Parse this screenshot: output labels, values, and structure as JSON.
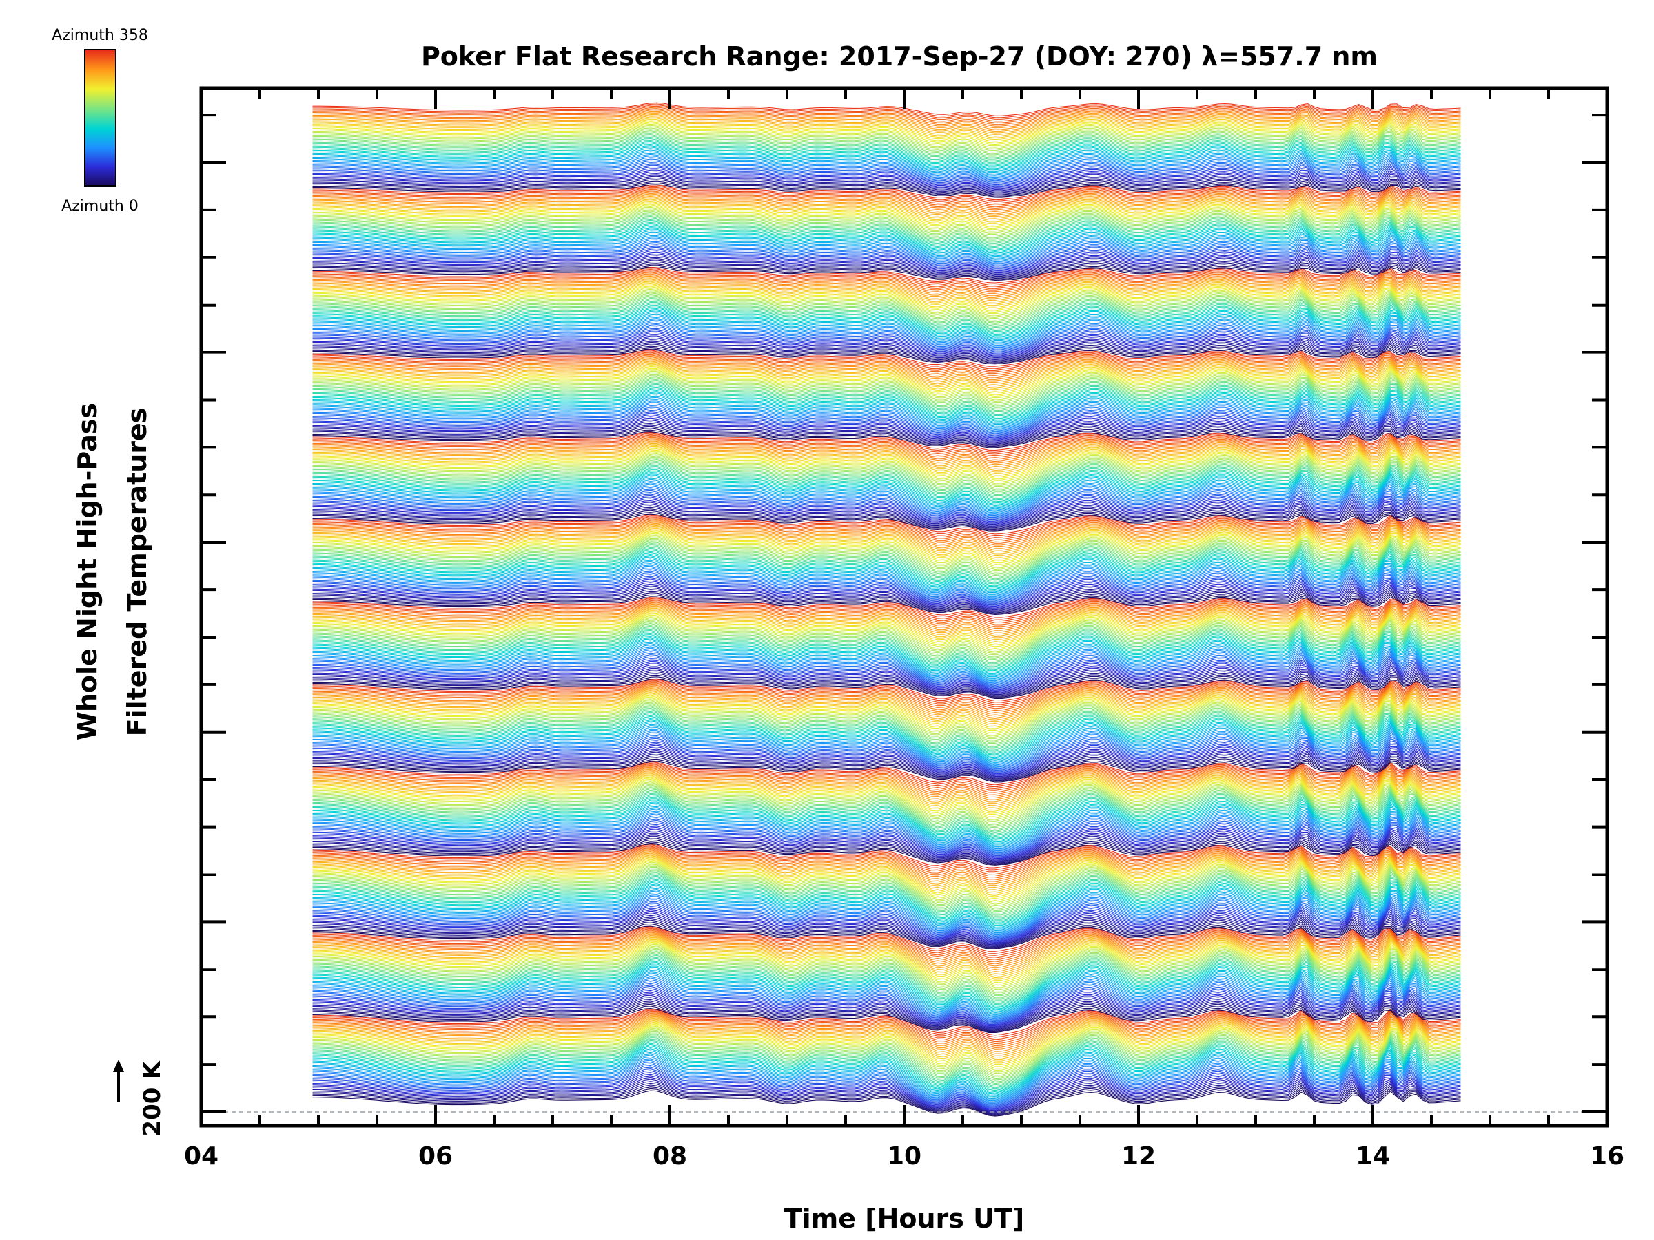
{
  "chart_data": {
    "type": "line",
    "title": "Poker Flat Research Range: 2017-Sep-27 (DOY: 270) λ=557.7 nm",
    "xlabel": "Time [Hours UT]",
    "ylabel_line1": "Whole Night High-Pass",
    "ylabel_line2": "Filtered Temperatures",
    "xlim": [
      4,
      16
    ],
    "x_ticks": [
      "04",
      "06",
      "08",
      "10",
      "12",
      "14",
      "16"
    ],
    "x_tick_values": [
      4,
      6,
      8,
      10,
      12,
      14,
      16
    ],
    "data_time_range": [
      4.95,
      14.75
    ],
    "scale_bar_label": "200 K",
    "colorbar": {
      "top_label": "Azimuth 358",
      "bottom_label": "Azimuth 0",
      "range": [
        0,
        358
      ],
      "colormap": [
        "#1a0a5c",
        "#2b2bd8",
        "#1e90ff",
        "#00d4d4",
        "#7fe57f",
        "#f0f030",
        "#ff9a1a",
        "#e8281a"
      ]
    },
    "series_description_values": {
      "azimuth_groups": 12,
      "key_features_hours": [
        6.8,
        7.85,
        9.0,
        9.85,
        10.3,
        10.75,
        11.0,
        11.6,
        12.0,
        12.7,
        13.4,
        13.85,
        14.15,
        14.35
      ],
      "feature_amplitudes": [
        0.3,
        0.9,
        -0.5,
        0.6,
        -0.8,
        -1.2,
        -0.9,
        0.6,
        -0.4,
        0.7,
        0.9,
        1.0,
        1.3,
        1.0
      ]
    },
    "colors": {
      "frame": "#000000",
      "background": "#ffffff",
      "baseline_dashed": "#9aa0a6"
    }
  }
}
